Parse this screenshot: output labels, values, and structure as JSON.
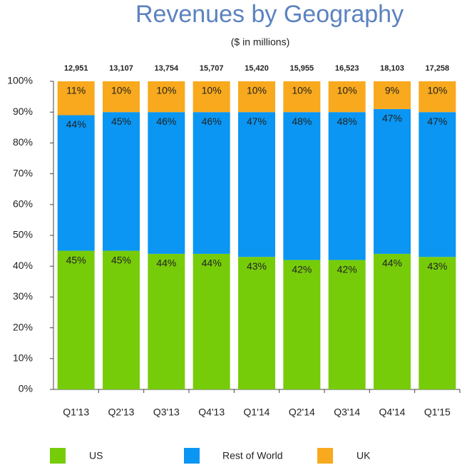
{
  "chart_data": {
    "type": "stacked_bar",
    "title": "Revenues by Geography",
    "subtitle": "($ in millions)",
    "categories": [
      "Q1'13",
      "Q2'13",
      "Q3'13",
      "Q4'13",
      "Q1'14",
      "Q2'14",
      "Q3'14",
      "Q4'14",
      "Q1'15"
    ],
    "totals": {
      "values": [
        12951,
        13107,
        13754,
        15707,
        15420,
        15955,
        16523,
        18103,
        17258
      ],
      "value_labels": [
        "12,951",
        "13,107",
        "13,754",
        "15,707",
        "15,420",
        "15,955",
        "16,523",
        "18,103",
        "17,258"
      ]
    },
    "series": [
      {
        "name": "US",
        "color": "#77cc0a",
        "values": [
          45,
          45,
          44,
          44,
          43,
          42,
          42,
          44,
          43
        ],
        "value_labels": [
          "45%",
          "45%",
          "44%",
          "44%",
          "43%",
          "42%",
          "42%",
          "44%",
          "43%"
        ]
      },
      {
        "name": "Rest of World",
        "color": "#0a96f2",
        "values": [
          44,
          45,
          46,
          46,
          47,
          48,
          48,
          47,
          47
        ],
        "value_labels": [
          "44%",
          "45%",
          "46%",
          "46%",
          "47%",
          "48%",
          "48%",
          "47%",
          "47%"
        ]
      },
      {
        "name": "UK",
        "color": "#f8a91d",
        "values": [
          11,
          10,
          10,
          10,
          10,
          10,
          10,
          9,
          10
        ],
        "value_labels": [
          "11%",
          "10%",
          "10%",
          "10%",
          "10%",
          "10%",
          "10%",
          "9%",
          "10%"
        ]
      }
    ],
    "ylim": [
      0,
      100
    ],
    "yticks": [
      {
        "value": 0,
        "label": "0%"
      },
      {
        "value": 10,
        "label": "10%"
      },
      {
        "value": 20,
        "label": "20%"
      },
      {
        "value": 30,
        "label": "30%"
      },
      {
        "value": 40,
        "label": "40%"
      },
      {
        "value": 50,
        "label": "50%"
      },
      {
        "value": 60,
        "label": "60%"
      },
      {
        "value": 70,
        "label": "70%"
      },
      {
        "value": 80,
        "label": "80%"
      },
      {
        "value": 90,
        "label": "90%"
      },
      {
        "value": 100,
        "label": "100%"
      }
    ],
    "legend": "bottom"
  }
}
